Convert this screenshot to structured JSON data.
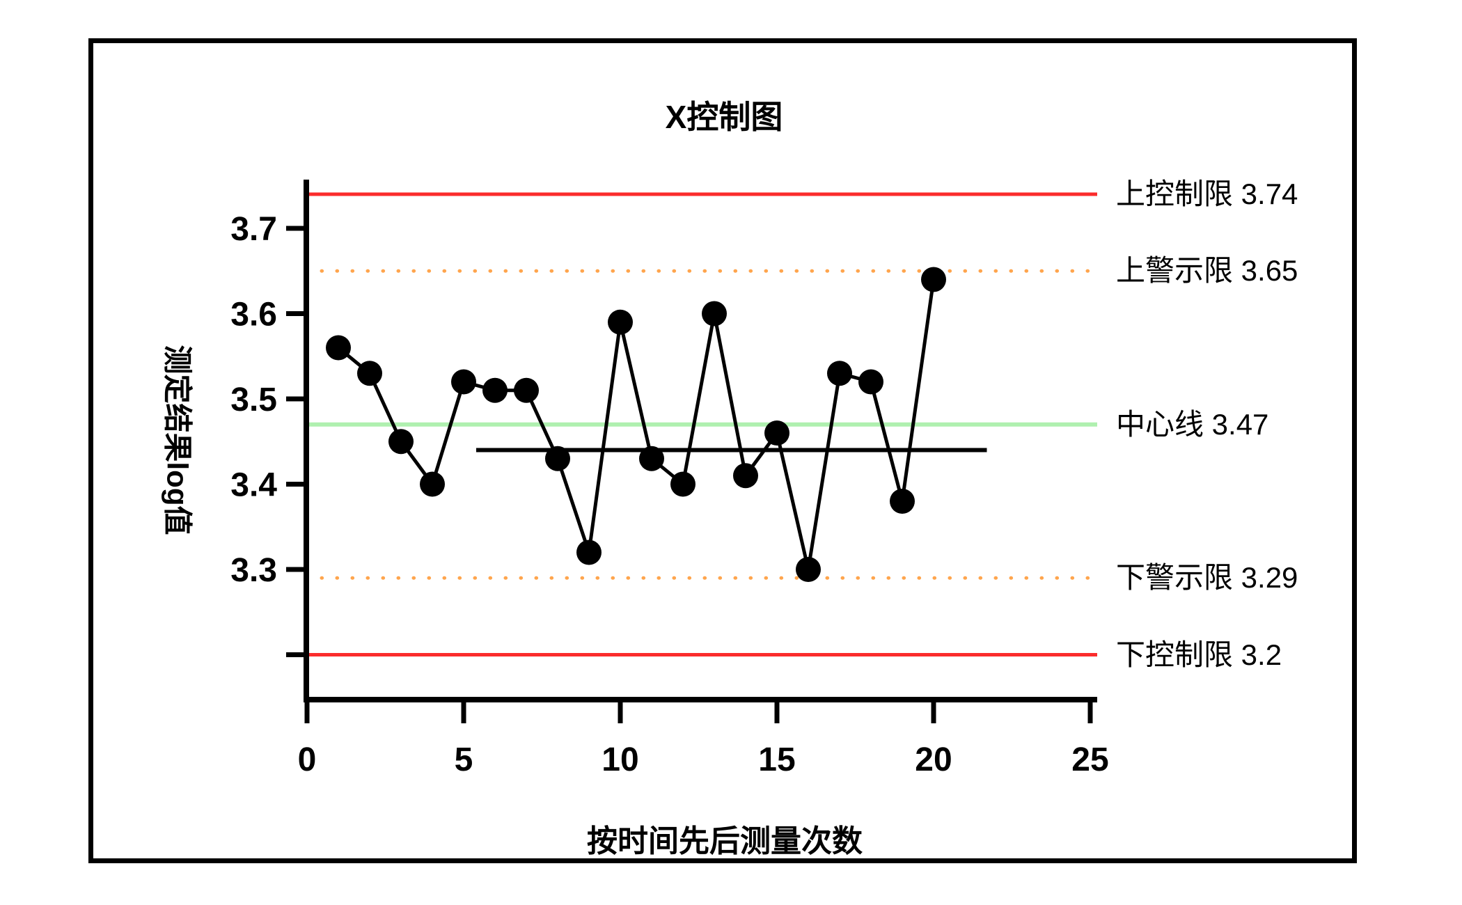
{
  "figure": {
    "title": "X控制图",
    "x_axis_label": "按时间先后测量次数",
    "y_axis_label": "测定结果log值",
    "background_color": "#ffffff",
    "border_color": "#000000"
  },
  "chart_data": {
    "type": "line",
    "title": "X控制图",
    "xlabel": "按时间先后测量次数",
    "ylabel": "测定结果log值",
    "x": [
      1,
      2,
      3,
      4,
      5,
      6,
      7,
      8,
      9,
      10,
      11,
      12,
      13,
      14,
      15,
      16,
      17,
      18,
      19,
      20
    ],
    "y": [
      3.56,
      3.53,
      3.45,
      3.4,
      3.52,
      3.51,
      3.51,
      3.43,
      3.32,
      3.59,
      3.43,
      3.4,
      3.6,
      3.41,
      3.46,
      3.3,
      3.53,
      3.52,
      3.38,
      3.64
    ],
    "series_color": "#000000",
    "marker": "circle",
    "grid": false,
    "legend": "none",
    "xlim": [
      0,
      25.2
    ],
    "ylim": [
      3.15,
      3.76
    ],
    "x_ticks": [
      0,
      5,
      10,
      15,
      20,
      25
    ],
    "x_tick_labels": [
      "0",
      "5",
      "10",
      "15",
      "20",
      "25"
    ],
    "y_ticks": [
      3.2,
      3.3,
      3.4,
      3.5,
      3.6,
      3.7
    ],
    "y_tick_labels": [
      "",
      "3.3",
      "3.4",
      "3.5",
      "3.6",
      "3.7"
    ],
    "reference_lines": [
      {
        "id": "ucl",
        "label": "上控制限 3.74",
        "value": 3.74,
        "style": "solid",
        "color": "#fb2c2c",
        "width": 5
      },
      {
        "id": "uwl",
        "label": "上警示限 3.65",
        "value": 3.65,
        "style": "dotted",
        "color": "#ffa54d",
        "width": 5
      },
      {
        "id": "cl",
        "label": "中心线 3.47",
        "value": 3.47,
        "style": "solid",
        "color": "#aff0af",
        "width": 6
      },
      {
        "id": "lwl",
        "label": "下警示限 3.29",
        "value": 3.29,
        "style": "dotted",
        "color": "#ffa54d",
        "width": 5
      },
      {
        "id": "lcl",
        "label": "下控制限 3.2",
        "value": 3.2,
        "style": "solid",
        "color": "#fb2c2c",
        "width": 5
      }
    ],
    "annotation_segment": {
      "value": 3.44,
      "x_start": 5.4,
      "x_end": 21.7,
      "color": "#000000",
      "width": 6
    }
  }
}
